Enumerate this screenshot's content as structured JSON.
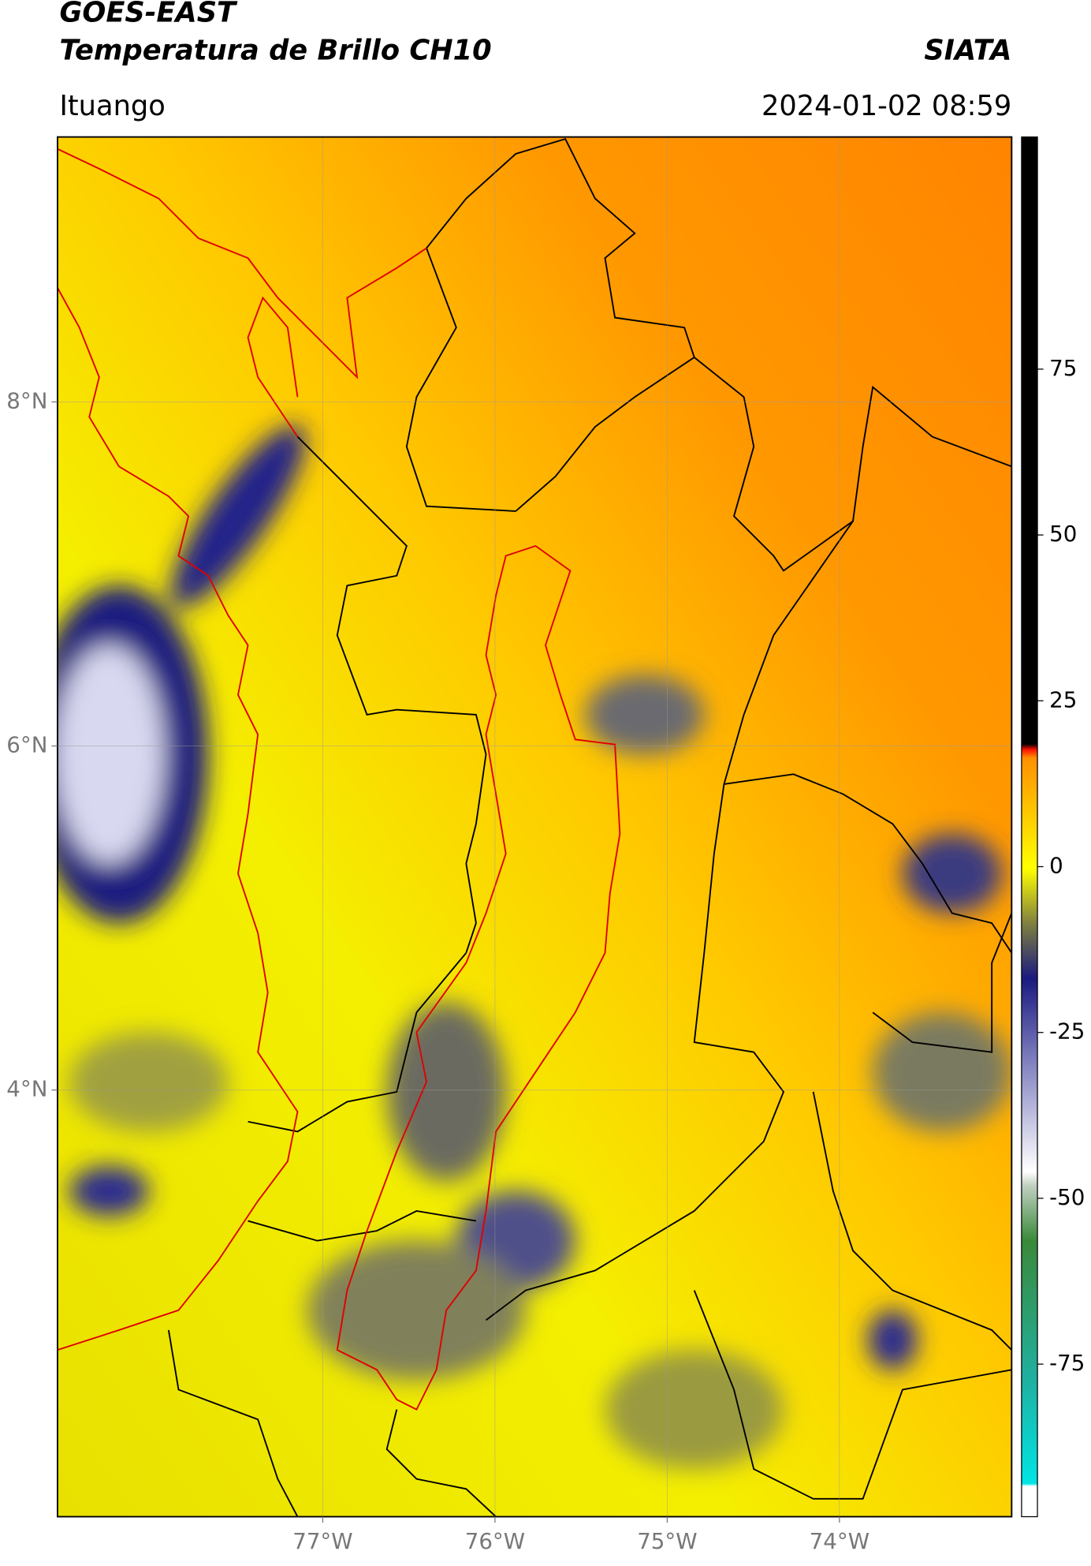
{
  "header": {
    "title": "GOES-EAST",
    "subtitle": "Temperatura de Brillo CH10",
    "brand": "SIATA",
    "region": "Ituango",
    "datetime": "2024-01-02 08:59"
  },
  "map": {
    "lonlim": [
      -78.54,
      -73.0
    ],
    "latlim": [
      1.52,
      9.54
    ],
    "lonticks": [
      {
        "value": -77,
        "label": "77°W"
      },
      {
        "value": -76,
        "label": "76°W"
      },
      {
        "value": -75,
        "label": "75°W"
      },
      {
        "value": -74,
        "label": "74°W"
      }
    ],
    "latticks": [
      {
        "value": 8,
        "label": "8°N"
      },
      {
        "value": 6,
        "label": "6°N"
      },
      {
        "value": 4,
        "label": "4°N"
      }
    ],
    "grid": true
  },
  "colorbar": {
    "lim": [
      -98,
      110
    ],
    "ticks": [
      75,
      50,
      25,
      0,
      -25,
      -50,
      -75
    ]
  }
}
